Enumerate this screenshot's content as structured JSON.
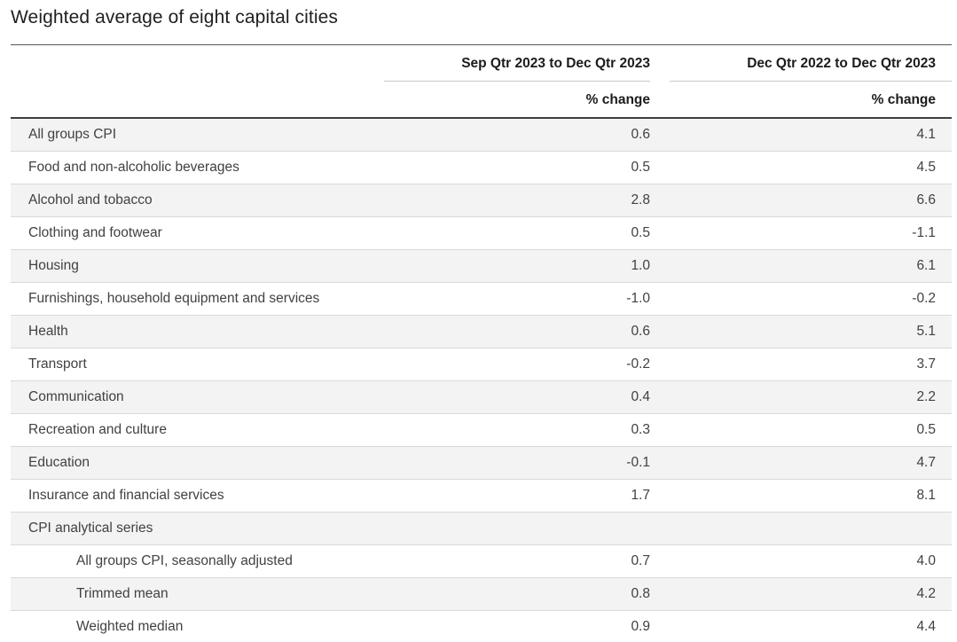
{
  "page": {
    "title": "Weighted average of eight capital cities"
  },
  "table": {
    "column_headers": [
      "Sep Qtr 2023 to Dec Qtr 2023",
      "Dec Qtr 2022 to Dec Qtr 2023"
    ],
    "unit_labels": [
      "% change",
      "% change"
    ],
    "rows": [
      {
        "label": "All groups CPI",
        "values": [
          "0.6",
          "4.1"
        ],
        "indent": false,
        "group_header": false
      },
      {
        "label": "Food and non-alcoholic beverages",
        "values": [
          "0.5",
          "4.5"
        ],
        "indent": false,
        "group_header": false
      },
      {
        "label": "Alcohol and tobacco",
        "values": [
          "2.8",
          "6.6"
        ],
        "indent": false,
        "group_header": false
      },
      {
        "label": "Clothing and footwear",
        "values": [
          "0.5",
          "-1.1"
        ],
        "indent": false,
        "group_header": false
      },
      {
        "label": "Housing",
        "values": [
          "1.0",
          "6.1"
        ],
        "indent": false,
        "group_header": false
      },
      {
        "label": "Furnishings, household equipment and services",
        "values": [
          "-1.0",
          "-0.2"
        ],
        "indent": false,
        "group_header": false
      },
      {
        "label": "Health",
        "values": [
          "0.6",
          "5.1"
        ],
        "indent": false,
        "group_header": false
      },
      {
        "label": "Transport",
        "values": [
          "-0.2",
          "3.7"
        ],
        "indent": false,
        "group_header": false
      },
      {
        "label": "Communication",
        "values": [
          "0.4",
          "2.2"
        ],
        "indent": false,
        "group_header": false
      },
      {
        "label": "Recreation and culture",
        "values": [
          "0.3",
          "0.5"
        ],
        "indent": false,
        "group_header": false
      },
      {
        "label": "Education",
        "values": [
          "-0.1",
          "4.7"
        ],
        "indent": false,
        "group_header": false
      },
      {
        "label": "Insurance and financial services",
        "values": [
          "1.7",
          "8.1"
        ],
        "indent": false,
        "group_header": false
      },
      {
        "label": "CPI analytical series",
        "values": [
          "",
          ""
        ],
        "indent": false,
        "group_header": true
      },
      {
        "label": "All groups CPI, seasonally adjusted",
        "values": [
          "0.7",
          "4.0"
        ],
        "indent": true,
        "group_header": false
      },
      {
        "label": "Trimmed mean",
        "values": [
          "0.8",
          "4.2"
        ],
        "indent": true,
        "group_header": false
      },
      {
        "label": "Weighted median",
        "values": [
          "0.9",
          "4.4"
        ],
        "indent": true,
        "group_header": false
      }
    ]
  },
  "colors": {
    "row_shade": "#f3f3f3",
    "border_light": "#d9d9d9",
    "border_header_underline": "#c9c9c9",
    "border_dark": "#3f3f3f",
    "text_heading": "#1c1c1c",
    "text_body": "#414141"
  },
  "chart_data": {
    "type": "table",
    "title": "Weighted average of eight capital cities",
    "categories": [
      "All groups CPI",
      "Food and non-alcoholic beverages",
      "Alcohol and tobacco",
      "Clothing and footwear",
      "Housing",
      "Furnishings, household equipment and services",
      "Health",
      "Transport",
      "Communication",
      "Recreation and culture",
      "Education",
      "Insurance and financial services",
      "CPI analytical series",
      "All groups CPI, seasonally adjusted",
      "Trimmed mean",
      "Weighted median"
    ],
    "series": [
      {
        "name": "Sep Qtr 2023 to Dec Qtr 2023 (% change)",
        "values": [
          0.6,
          0.5,
          2.8,
          0.5,
          1.0,
          -1.0,
          0.6,
          -0.2,
          0.4,
          0.3,
          -0.1,
          1.7,
          null,
          0.7,
          0.8,
          0.9
        ]
      },
      {
        "name": "Dec Qtr 2022 to Dec Qtr 2023 (% change)",
        "values": [
          4.1,
          4.5,
          6.6,
          -1.1,
          6.1,
          -0.2,
          5.1,
          3.7,
          2.2,
          0.5,
          4.7,
          8.1,
          null,
          4.0,
          4.2,
          4.4
        ]
      }
    ],
    "unit": "% change",
    "notes": "Rows 14-16 are sub-items of 'CPI analytical series'; alternating rows shaded light grey"
  }
}
